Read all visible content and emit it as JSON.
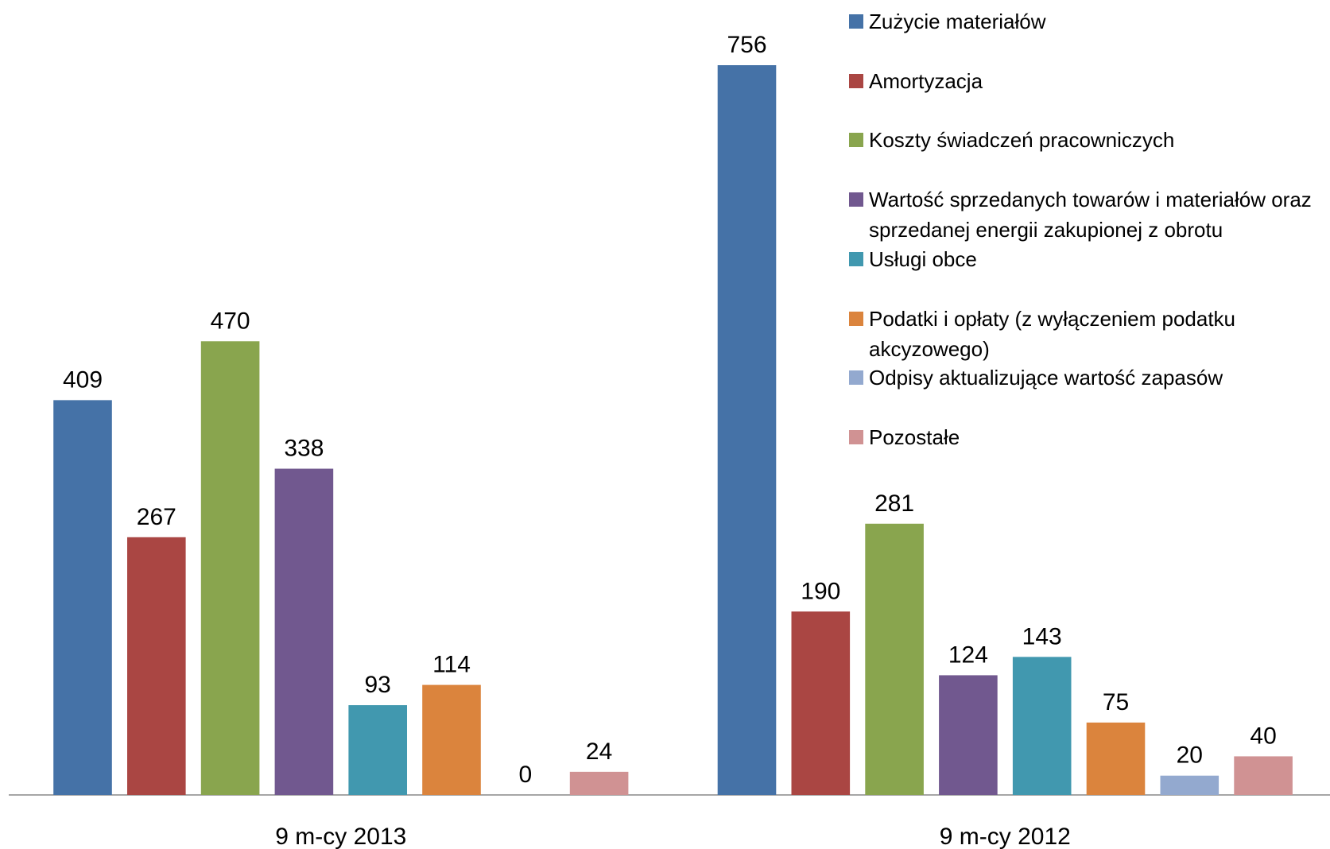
{
  "chart_data": {
    "type": "bar",
    "categories": [
      "9 m-cy 2013",
      "9 m-cy 2012"
    ],
    "series": [
      {
        "name": "Zużycie materiałów",
        "color": "#4572a7",
        "values": [
          409,
          756
        ]
      },
      {
        "name": "Amortyzacja",
        "color": "#aa4643",
        "values": [
          267,
          190
        ]
      },
      {
        "name": "Koszty świadczeń pracowniczych",
        "color": "#89a54e",
        "values": [
          470,
          281
        ]
      },
      {
        "name": "Wartość sprzedanych towarów i materiałów oraz sprzedanej energii zakupionej z obrotu",
        "color": "#71588f",
        "values": [
          338,
          124
        ]
      },
      {
        "name": "Usługi obce",
        "color": "#4198af",
        "values": [
          93,
          143
        ]
      },
      {
        "name": "Podatki i opłaty (z wyłączeniem podatku akcyzowego)",
        "color": "#db843d",
        "values": [
          114,
          75
        ]
      },
      {
        "name": "Odpisy aktualizujące wartość zapasów",
        "color": "#93a9cf",
        "values": [
          0,
          20
        ]
      },
      {
        "name": "Pozostałe",
        "color": "#d09293",
        "values": [
          24,
          40
        ]
      }
    ],
    "legend": "right"
  }
}
